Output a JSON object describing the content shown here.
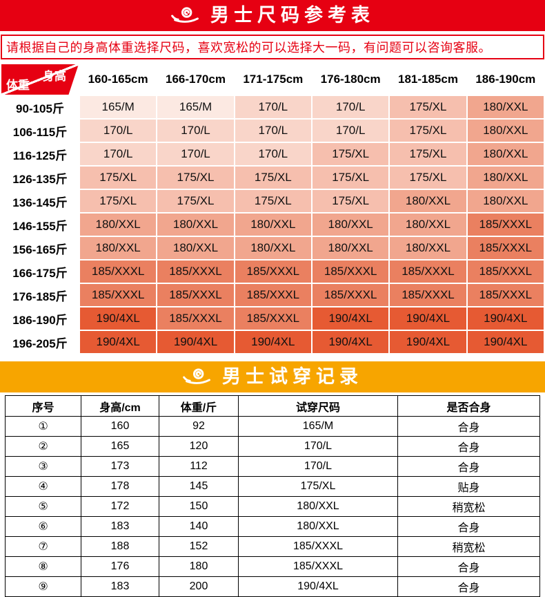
{
  "colors": {
    "banner_red": "#e60012",
    "banner_orange": "#f7a500",
    "notice_red": "#e60012",
    "grid_white": "#ffffff",
    "tryon_border": "#000000"
  },
  "size_section": {
    "banner": {
      "title": "男士尺码参考表",
      "icon": "auspicious-cloud-icon",
      "bg": "#e60012"
    },
    "notice": "请根据自己的身高体重选择尺码，喜欢宽松的可以选择大一码，有问题可以咨询客服。",
    "corner": {
      "top_label": "身高",
      "bottom_label": "体重"
    },
    "height_columns": [
      "160-165cm",
      "166-170cm",
      "171-175cm",
      "176-180cm",
      "181-185cm",
      "186-190cm"
    ],
    "rows": [
      {
        "weight": "90-105斤",
        "sizes": [
          "165/M",
          "165/M",
          "170/L",
          "170/L",
          "175/XL",
          "180/XXL"
        ]
      },
      {
        "weight": "106-115斤",
        "sizes": [
          "170/L",
          "170/L",
          "170/L",
          "170/L",
          "175/XL",
          "180/XXL"
        ]
      },
      {
        "weight": "116-125斤",
        "sizes": [
          "170/L",
          "170/L",
          "170/L",
          "175/XL",
          "175/XL",
          "180/XXL"
        ]
      },
      {
        "weight": "126-135斤",
        "sizes": [
          "175/XL",
          "175/XL",
          "175/XL",
          "175/XL",
          "175/XL",
          "180/XXL"
        ]
      },
      {
        "weight": "136-145斤",
        "sizes": [
          "175/XL",
          "175/XL",
          "175/XL",
          "175/XL",
          "180/XXL",
          "180/XXL"
        ]
      },
      {
        "weight": "146-155斤",
        "sizes": [
          "180/XXL",
          "180/XXL",
          "180/XXL",
          "180/XXL",
          "180/XXL",
          "185/XXXL"
        ]
      },
      {
        "weight": "156-165斤",
        "sizes": [
          "180/XXL",
          "180/XXL",
          "180/XXL",
          "180/XXL",
          "180/XXL",
          "185/XXXL"
        ]
      },
      {
        "weight": "166-175斤",
        "sizes": [
          "185/XXXL",
          "185/XXXL",
          "185/XXXL",
          "185/XXXL",
          "185/XXXL",
          "185/XXXL"
        ]
      },
      {
        "weight": "176-185斤",
        "sizes": [
          "185/XXXL",
          "185/XXXL",
          "185/XXXL",
          "185/XXXL",
          "185/XXXL",
          "185/XXXL"
        ]
      },
      {
        "weight": "186-190斤",
        "sizes": [
          "190/4XL",
          "185/XXXL",
          "185/XXXL",
          "190/4XL",
          "190/4XL",
          "190/4XL"
        ]
      },
      {
        "weight": "196-205斤",
        "sizes": [
          "190/4XL",
          "190/4XL",
          "190/4XL",
          "190/4XL",
          "190/4XL",
          "190/4XL"
        ]
      }
    ],
    "size_colors": {
      "165/M": "#fce9e2",
      "170/L": "#f9d5c9",
      "175/XL": "#f6bfae",
      "180/XXL": "#f1a68e",
      "185/XXXL": "#ea8060",
      "190/4XL": "#e65a33"
    }
  },
  "tryon_section": {
    "banner": {
      "title": "男士试穿记录",
      "icon": "auspicious-cloud-icon",
      "bg": "#f7a500"
    },
    "headers": [
      "序号",
      "身高/cm",
      "体重/斤",
      "试穿尺码",
      "是否合身"
    ],
    "rows": [
      [
        "①",
        "160",
        "92",
        "165/M",
        "合身"
      ],
      [
        "②",
        "165",
        "120",
        "170/L",
        "合身"
      ],
      [
        "③",
        "173",
        "112",
        "170/L",
        "合身"
      ],
      [
        "④",
        "178",
        "145",
        "175/XL",
        "贴身"
      ],
      [
        "⑤",
        "172",
        "150",
        "180/XXL",
        "稍宽松"
      ],
      [
        "⑥",
        "183",
        "140",
        "180/XXL",
        "合身"
      ],
      [
        "⑦",
        "188",
        "152",
        "185/XXXL",
        "稍宽松"
      ],
      [
        "⑧",
        "176",
        "180",
        "185/XXXL",
        "合身"
      ],
      [
        "⑨",
        "183",
        "200",
        "190/4XL",
        "合身"
      ]
    ]
  }
}
